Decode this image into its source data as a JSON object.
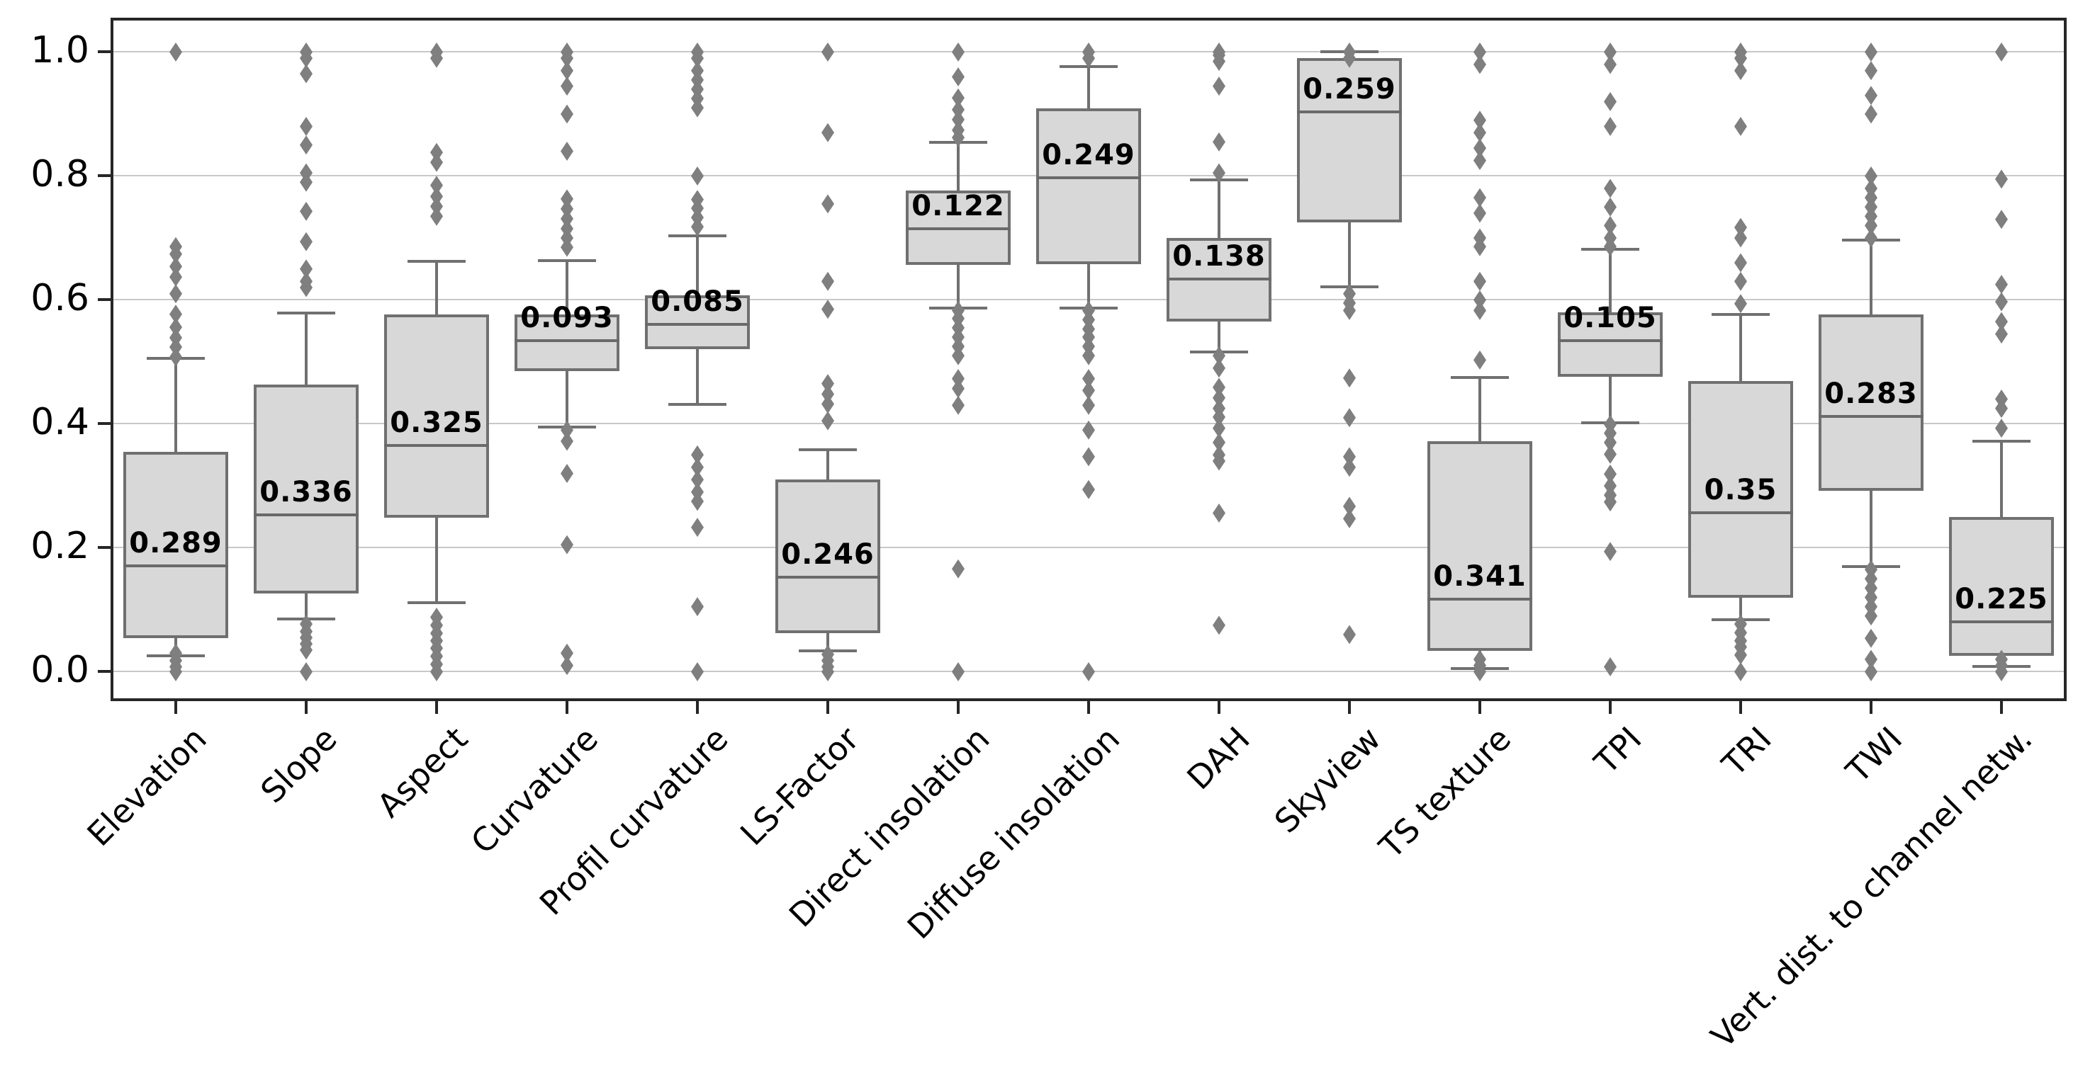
{
  "figure": {
    "background": "#ffffff"
  },
  "colors": {
    "box_fill": "#d8d8d8",
    "box_edge": "#707070",
    "whisker": "#707070",
    "median": "#6a6a6a",
    "outlier": "#7f7f7f",
    "gridline": "#c8c8c8",
    "spine": "#262626",
    "tick": "#262626",
    "text": "#000000"
  },
  "chart_data": {
    "type": "boxplot",
    "title": "",
    "xlabel": "",
    "ylabel": "",
    "legend": "none",
    "grid": "horizontal",
    "ylim": [
      -0.05,
      1.055
    ],
    "yticks": [
      0.0,
      0.2,
      0.4,
      0.6,
      0.8,
      1.0
    ],
    "ytick_labels": [
      "0.0",
      "0.2",
      "0.4",
      "0.6",
      "0.8",
      "1.0"
    ],
    "categories": [
      "Elevation",
      "Slope",
      "Aspect",
      "Curvature",
      "Profil curvature",
      "LS-Factor",
      "Direct insolation",
      "Diffuse insolation",
      "DAH",
      "Skyview",
      "TS texture",
      "TPI",
      "TRI",
      "TWI",
      "Vert. dist. to channel netw."
    ],
    "series": [
      {
        "name": "Elevation",
        "label": "0.289",
        "whisker_low": 0.025,
        "q1": 0.054,
        "median": 0.17,
        "q3": 0.354,
        "whisker_high": 0.505,
        "outliers": [
          1.0,
          0.686,
          0.674,
          0.654,
          0.637,
          0.61,
          0.577,
          0.556,
          0.539,
          0.524,
          0.508,
          0.03,
          0.018,
          0.008,
          0.0
        ]
      },
      {
        "name": "Slope",
        "label": "0.336",
        "whisker_low": 0.085,
        "q1": 0.126,
        "median": 0.253,
        "q3": 0.463,
        "whisker_high": 0.578,
        "outliers": [
          1.0,
          0.99,
          0.965,
          0.88,
          0.85,
          0.805,
          0.79,
          0.743,
          0.694,
          0.65,
          0.63,
          0.62,
          0.077,
          0.065,
          0.055,
          0.045,
          0.035,
          0.0
        ]
      },
      {
        "name": "Aspect",
        "label": "0.325",
        "whisker_low": 0.111,
        "q1": 0.248,
        "median": 0.365,
        "q3": 0.576,
        "whisker_high": 0.662,
        "outliers": [
          1.0,
          0.99,
          0.838,
          0.822,
          0.785,
          0.767,
          0.751,
          0.735,
          0.088,
          0.075,
          0.062,
          0.05,
          0.038,
          0.025,
          0.012,
          0.0
        ]
      },
      {
        "name": "Curvature",
        "label": "0.093",
        "whisker_low": 0.394,
        "q1": 0.485,
        "median": 0.534,
        "q3": 0.576,
        "whisker_high": 0.663,
        "outliers": [
          1.0,
          0.99,
          0.97,
          0.945,
          0.9,
          0.84,
          0.763,
          0.747,
          0.731,
          0.715,
          0.7,
          0.685,
          0.39,
          0.372,
          0.32,
          0.205,
          0.03,
          0.01
        ]
      },
      {
        "name": "Profil curvature",
        "label": "0.085",
        "whisker_low": 0.431,
        "q1": 0.52,
        "median": 0.56,
        "q3": 0.607,
        "whisker_high": 0.703,
        "outliers": [
          1.0,
          0.99,
          0.97,
          0.955,
          0.94,
          0.925,
          0.91,
          0.8,
          0.762,
          0.748,
          0.733,
          0.718,
          0.35,
          0.33,
          0.31,
          0.29,
          0.275,
          0.233,
          0.105,
          0.0
        ]
      },
      {
        "name": "LS-Factor",
        "label": "0.246",
        "whisker_low": 0.033,
        "q1": 0.062,
        "median": 0.152,
        "q3": 0.31,
        "whisker_high": 0.358,
        "outliers": [
          1.0,
          0.87,
          0.755,
          0.63,
          0.585,
          0.465,
          0.448,
          0.432,
          0.405,
          0.028,
          0.018,
          0.008,
          0.0
        ]
      },
      {
        "name": "Direct insolation",
        "label": "0.122",
        "whisker_low": 0.586,
        "q1": 0.656,
        "median": 0.714,
        "q3": 0.776,
        "whisker_high": 0.854,
        "outliers": [
          1.0,
          0.96,
          0.926,
          0.907,
          0.891,
          0.874,
          0.862,
          0.583,
          0.57,
          0.555,
          0.54,
          0.525,
          0.51,
          0.473,
          0.457,
          0.43,
          0.166,
          0.0
        ]
      },
      {
        "name": "Diffuse insolation",
        "label": "0.249",
        "whisker_low": 0.586,
        "q1": 0.657,
        "median": 0.797,
        "q3": 0.909,
        "whisker_high": 0.976,
        "outliers": [
          1.0,
          0.99,
          0.583,
          0.568,
          0.553,
          0.54,
          0.525,
          0.51,
          0.473,
          0.454,
          0.43,
          0.39,
          0.347,
          0.294,
          0.0
        ]
      },
      {
        "name": "DAH",
        "label": "0.138",
        "whisker_low": 0.515,
        "q1": 0.565,
        "median": 0.633,
        "q3": 0.7,
        "whisker_high": 0.793,
        "outliers": [
          1.0,
          0.995,
          0.985,
          0.945,
          0.855,
          0.805,
          0.51,
          0.49,
          0.459,
          0.442,
          0.425,
          0.411,
          0.393,
          0.37,
          0.35,
          0.34,
          0.256,
          0.075
        ]
      },
      {
        "name": "Skyview",
        "label": "0.259",
        "whisker_low": 0.621,
        "q1": 0.725,
        "median": 0.903,
        "q3": 0.99,
        "whisker_high": 1.0,
        "outliers": [
          1.0,
          0.99,
          0.61,
          0.595,
          0.583,
          0.474,
          0.41,
          0.347,
          0.33,
          0.267,
          0.247,
          0.06
        ]
      },
      {
        "name": "TS texture",
        "label": "0.341",
        "whisker_low": 0.005,
        "q1": 0.033,
        "median": 0.117,
        "q3": 0.371,
        "whisker_high": 0.474,
        "outliers": [
          1.0,
          0.98,
          0.89,
          0.87,
          0.845,
          0.825,
          0.765,
          0.74,
          0.7,
          0.686,
          0.63,
          0.6,
          0.583,
          0.503,
          0.02,
          0.01,
          0.0
        ]
      },
      {
        "name": "TPI",
        "label": "0.105",
        "whisker_low": 0.401,
        "q1": 0.476,
        "median": 0.534,
        "q3": 0.58,
        "whisker_high": 0.681,
        "outliers": [
          1.0,
          0.98,
          0.92,
          0.88,
          0.78,
          0.75,
          0.72,
          0.7,
          0.686,
          0.399,
          0.385,
          0.37,
          0.351,
          0.319,
          0.3,
          0.285,
          0.274,
          0.194,
          0.008
        ]
      },
      {
        "name": "TRI",
        "label": "0.35",
        "whisker_low": 0.083,
        "q1": 0.119,
        "median": 0.256,
        "q3": 0.469,
        "whisker_high": 0.576,
        "outliers": [
          1.0,
          0.99,
          0.97,
          0.88,
          0.717,
          0.7,
          0.66,
          0.63,
          0.594,
          0.077,
          0.063,
          0.05,
          0.04,
          0.027,
          0.0
        ]
      },
      {
        "name": "TWI",
        "label": "0.283",
        "whisker_low": 0.169,
        "q1": 0.291,
        "median": 0.411,
        "q3": 0.576,
        "whisker_high": 0.696,
        "outliers": [
          1.0,
          0.97,
          0.93,
          0.9,
          0.8,
          0.78,
          0.765,
          0.75,
          0.735,
          0.72,
          0.7,
          0.165,
          0.15,
          0.135,
          0.12,
          0.105,
          0.09,
          0.054,
          0.02,
          0.0
        ]
      },
      {
        "name": "Vert. dist. to channel netw.",
        "label": "0.225",
        "whisker_low": 0.008,
        "q1": 0.025,
        "median": 0.08,
        "q3": 0.249,
        "whisker_high": 0.371,
        "outliers": [
          1.0,
          0.795,
          0.73,
          0.625,
          0.597,
          0.565,
          0.545,
          0.44,
          0.425,
          0.393,
          0.02,
          0.01,
          0.0
        ]
      }
    ]
  }
}
